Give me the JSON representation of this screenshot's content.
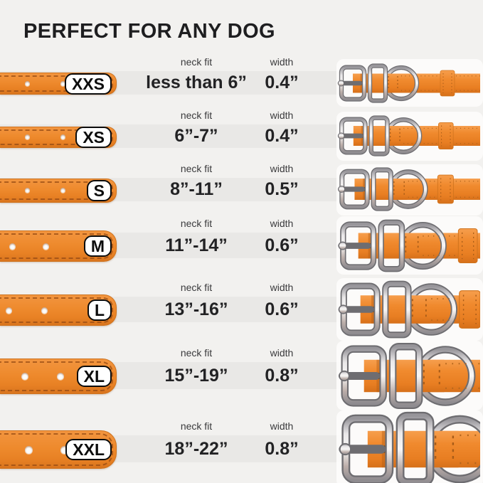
{
  "title": "PERFECT FOR ANY DOG",
  "columns": {
    "neck_fit": "neck fit",
    "width": "width"
  },
  "rows": [
    {
      "size": "XXS",
      "neck_fit": "less than 6”",
      "width": "0.4”"
    },
    {
      "size": "XS",
      "neck_fit": "6”-7”",
      "width": "0.4”"
    },
    {
      "size": "S",
      "neck_fit": "8”-11”",
      "width": "0.5”"
    },
    {
      "size": "M",
      "neck_fit": "11”-14”",
      "width": "0.6”"
    },
    {
      "size": "L",
      "neck_fit": "13”-16”",
      "width": "0.6”"
    },
    {
      "size": "XL",
      "neck_fit": "15”-19”",
      "width": "0.8”"
    },
    {
      "size": "XXL",
      "neck_fit": "18”-22”",
      "width": "0.8”"
    }
  ],
  "chart_data": {
    "type": "table",
    "title": "PERFECT FOR ANY DOG",
    "categories": [
      "XXS",
      "XS",
      "S",
      "M",
      "L",
      "XL",
      "XXL"
    ],
    "series": [
      {
        "name": "neck fit",
        "values": [
          "less than 6”",
          "6”-7”",
          "8”-11”",
          "11”-14”",
          "13”-16”",
          "15”-19”",
          "18”-22”"
        ]
      },
      {
        "name": "width",
        "values": [
          "0.4”",
          "0.4”",
          "0.5”",
          "0.6”",
          "0.6”",
          "0.8”",
          "0.8”"
        ]
      }
    ]
  },
  "colors": {
    "background": "#f2f1ef",
    "band_gray": "#e9e8e6",
    "strap_orange": "#ee8a2d",
    "metal_silver": "#c9c2c0",
    "text_dark": "#1e1e20"
  }
}
